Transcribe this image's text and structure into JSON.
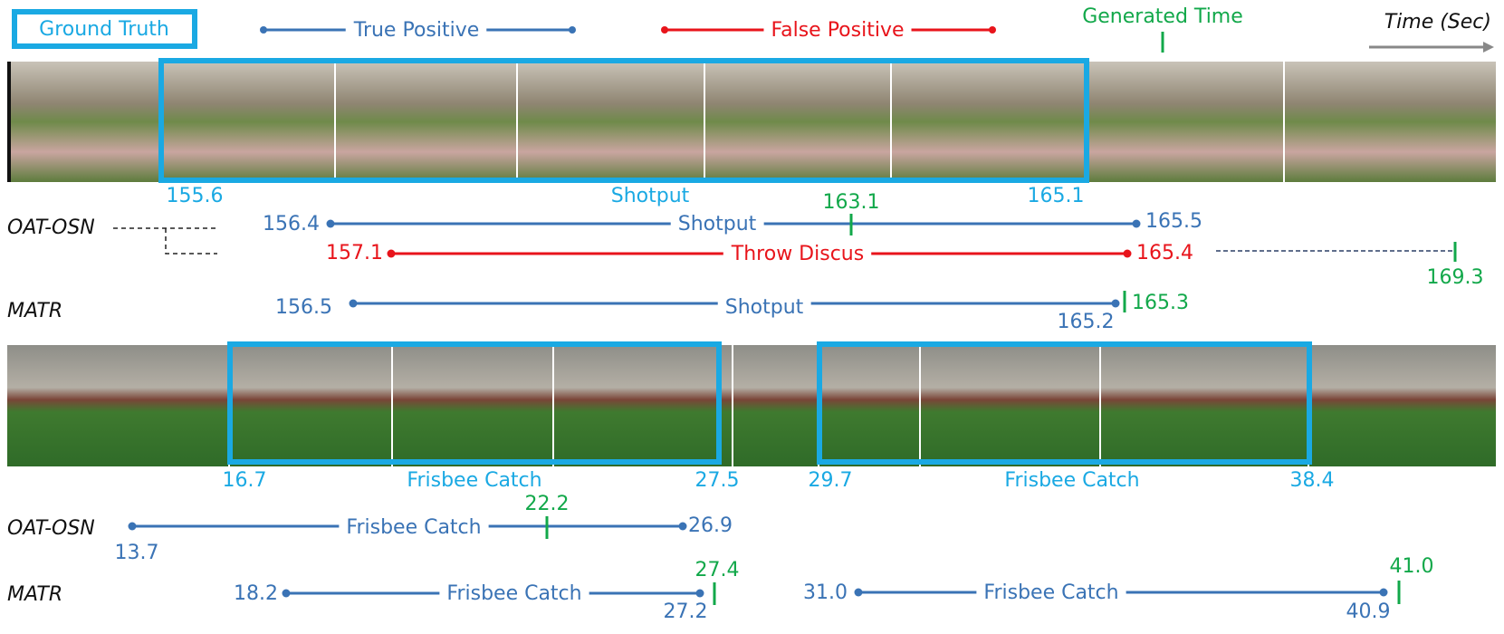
{
  "legend": {
    "ground_truth": "Ground Truth",
    "true_positive": "True Positive",
    "false_positive": "False Positive",
    "generated_time": "Generated Time",
    "time_axis": "Time (Sec)"
  },
  "example_1": {
    "ground_truth": {
      "start": "155.6",
      "label": "Shotput",
      "end": "165.1"
    },
    "oat_osn": {
      "method": "OAT-OSN",
      "true_positive": {
        "start": "156.4",
        "label": "Shotput",
        "end": "165.5",
        "generated": "163.1"
      },
      "false_positive": {
        "start": "157.1",
        "label": "Throw Discus",
        "end": "165.4",
        "generated": "169.3"
      }
    },
    "matr": {
      "method": "MATR",
      "prediction": {
        "start": "156.5",
        "label": "Shotput",
        "end": "165.2",
        "generated": "165.3"
      }
    }
  },
  "example_2": {
    "ground_truth": [
      {
        "start": "16.7",
        "label": "Frisbee Catch",
        "end": "27.5"
      },
      {
        "start": "29.7",
        "label": "Frisbee Catch",
        "end": "38.4"
      }
    ],
    "oat_osn": {
      "method": "OAT-OSN",
      "predictions": [
        {
          "start": "13.7",
          "label": "Frisbee Catch",
          "end": "26.9",
          "generated": "22.2"
        }
      ]
    },
    "matr": {
      "method": "MATR",
      "predictions": [
        {
          "start": "18.2",
          "label": "Frisbee Catch",
          "end": "27.2",
          "generated": "27.4"
        },
        {
          "start": "31.0",
          "label": "Frisbee Catch",
          "end": "40.9",
          "generated": "41.0"
        }
      ]
    }
  }
}
